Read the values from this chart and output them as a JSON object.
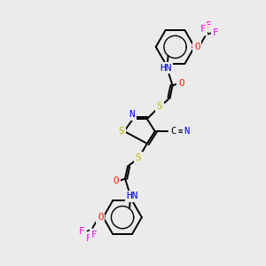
{
  "background_color": "#ebebeb",
  "atom_colors": {
    "S": "#b8b800",
    "N": "#0000ff",
    "O": "#ff2200",
    "F": "#ff00ff",
    "C": "#000000"
  },
  "bond_color": "#000000",
  "figsize": [
    3.0,
    3.0
  ],
  "dpi": 100,
  "bg_hex": "#ebebeb"
}
